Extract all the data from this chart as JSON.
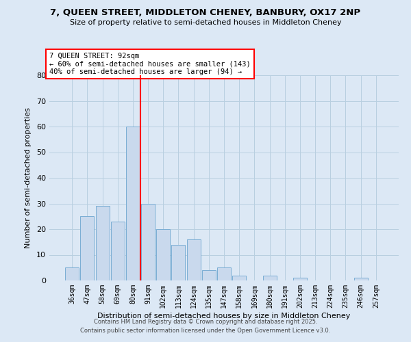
{
  "title1": "7, QUEEN STREET, MIDDLETON CHENEY, BANBURY, OX17 2NP",
  "title2": "Size of property relative to semi-detached houses in Middleton Cheney",
  "bar_labels": [
    "36sqm",
    "47sqm",
    "58sqm",
    "69sqm",
    "80sqm",
    "91sqm",
    "102sqm",
    "113sqm",
    "124sqm",
    "135sqm",
    "147sqm",
    "158sqm",
    "169sqm",
    "180sqm",
    "191sqm",
    "202sqm",
    "213sqm",
    "224sqm",
    "235sqm",
    "246sqm",
    "257sqm"
  ],
  "bar_values": [
    5,
    25,
    29,
    23,
    60,
    30,
    20,
    14,
    16,
    4,
    5,
    2,
    0,
    2,
    0,
    1,
    0,
    0,
    0,
    1,
    0
  ],
  "bar_color": "#c9d9ed",
  "bar_edgecolor": "#7aadd4",
  "vline_color": "red",
  "vline_index": 4.5,
  "xlabel": "Distribution of semi-detached houses by size in Middleton Cheney",
  "ylabel": "Number of semi-detached properties",
  "ylim": [
    0,
    80
  ],
  "yticks": [
    0,
    10,
    20,
    30,
    40,
    50,
    60,
    70,
    80
  ],
  "annotation_title": "7 QUEEN STREET: 92sqm",
  "annotation_line1": "← 60% of semi-detached houses are smaller (143)",
  "annotation_line2": "40% of semi-detached houses are larger (94) →",
  "annotation_box_facecolor": "white",
  "annotation_box_edgecolor": "red",
  "footnote1": "Contains HM Land Registry data © Crown copyright and database right 2025.",
  "footnote2": "Contains public sector information licensed under the Open Government Licence v3.0.",
  "background_color": "#dce8f5",
  "grid_color": "#b8cfe0",
  "title_fontsize": 9.5,
  "subtitle_fontsize": 8
}
